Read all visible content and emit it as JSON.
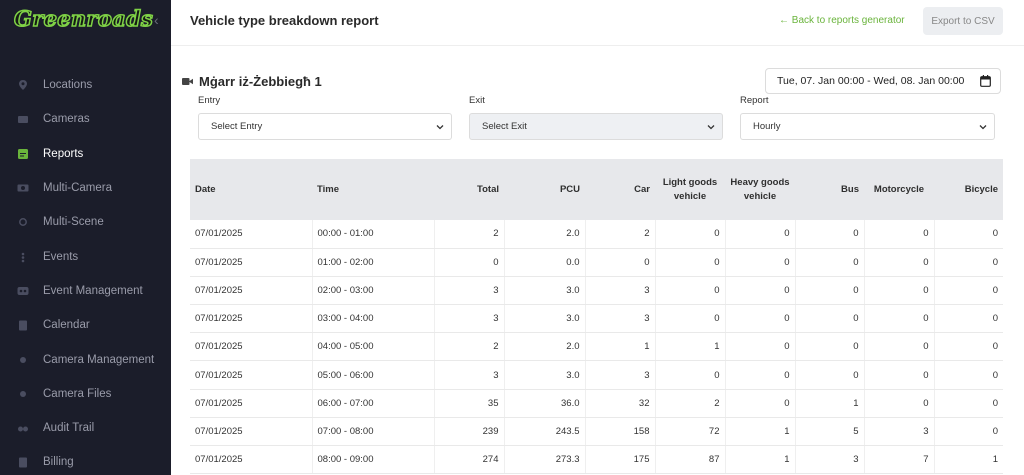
{
  "sidebar": {
    "logo": "Greenroads",
    "items": [
      {
        "label": "Locations",
        "icon": "map-pin-icon"
      },
      {
        "label": "Cameras",
        "icon": "camera-icon"
      },
      {
        "label": "Reports",
        "icon": "report-icon",
        "active": true
      },
      {
        "label": "Multi-Camera",
        "icon": "multi-camera-icon"
      },
      {
        "label": "Multi-Scene",
        "icon": "multi-scene-icon"
      },
      {
        "label": "Events",
        "icon": "events-icon"
      },
      {
        "label": "Event Management",
        "icon": "event-management-icon"
      },
      {
        "label": "Calendar",
        "icon": "calendar-icon"
      },
      {
        "label": "Camera Management",
        "icon": "camera-management-icon"
      },
      {
        "label": "Camera Files",
        "icon": "camera-files-icon"
      },
      {
        "label": "Audit Trail",
        "icon": "audit-trail-icon"
      },
      {
        "label": "Billing",
        "icon": "billing-icon"
      }
    ]
  },
  "header": {
    "title": "Vehicle type breakdown report",
    "back_link": "Back to reports generator",
    "export_label": "Export to CSV"
  },
  "location": {
    "name": "Mġarr iż-Żebbiegħ 1"
  },
  "date_range": "Tue, 07. Jan 00:00 - Wed, 08. Jan 00:00",
  "filters": {
    "entry_label": "Entry",
    "entry_value": "Select Entry",
    "exit_label": "Exit",
    "exit_value": "Select Exit",
    "report_label": "Report",
    "report_value": "Hourly"
  },
  "table": {
    "headers": [
      "Date",
      "Time",
      "Total",
      "PCU",
      "Car",
      "Light goods vehicle",
      "Heavy goods vehicle",
      "Bus",
      "Motorcycle",
      "Bicycle"
    ],
    "rows": [
      [
        "07/01/2025",
        "00:00 - 01:00",
        "2",
        "2.0",
        "2",
        "0",
        "0",
        "0",
        "0",
        "0"
      ],
      [
        "07/01/2025",
        "01:00 - 02:00",
        "0",
        "0.0",
        "0",
        "0",
        "0",
        "0",
        "0",
        "0"
      ],
      [
        "07/01/2025",
        "02:00 - 03:00",
        "3",
        "3.0",
        "3",
        "0",
        "0",
        "0",
        "0",
        "0"
      ],
      [
        "07/01/2025",
        "03:00 - 04:00",
        "3",
        "3.0",
        "3",
        "0",
        "0",
        "0",
        "0",
        "0"
      ],
      [
        "07/01/2025",
        "04:00 - 05:00",
        "2",
        "2.0",
        "1",
        "1",
        "0",
        "0",
        "0",
        "0"
      ],
      [
        "07/01/2025",
        "05:00 - 06:00",
        "3",
        "3.0",
        "3",
        "0",
        "0",
        "0",
        "0",
        "0"
      ],
      [
        "07/01/2025",
        "06:00 - 07:00",
        "35",
        "36.0",
        "32",
        "2",
        "0",
        "1",
        "0",
        "0"
      ],
      [
        "07/01/2025",
        "07:00 - 08:00",
        "239",
        "243.5",
        "158",
        "72",
        "1",
        "5",
        "3",
        "0"
      ],
      [
        "07/01/2025",
        "08:00 - 09:00",
        "274",
        "273.3",
        "175",
        "87",
        "1",
        "3",
        "7",
        "1"
      ]
    ]
  }
}
